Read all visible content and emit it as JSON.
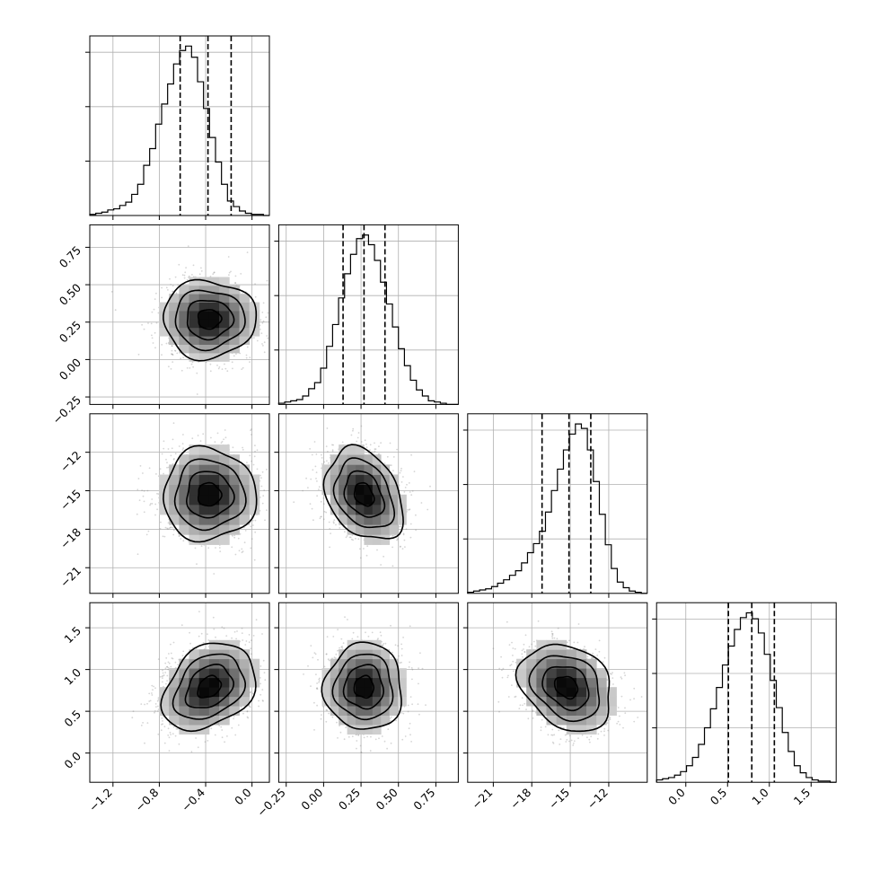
{
  "chart_data": {
    "type": "corner",
    "n_params": 4,
    "params": [
      {
        "range": [
          -1.4,
          0.15
        ],
        "ticks": [
          -1.2,
          -0.8,
          -0.4,
          0.0
        ],
        "tick_labels": [
          "−1.2",
          "−0.8",
          "−0.4",
          "0.0"
        ],
        "mean": -0.37,
        "sd": 0.2,
        "quantiles": [
          -0.62,
          -0.38,
          -0.18
        ]
      },
      {
        "range": [
          -0.3,
          0.9
        ],
        "ticks": [
          -0.25,
          0.0,
          0.25,
          0.5,
          0.75
        ],
        "tick_labels": [
          "−0.25",
          "0.00",
          "0.25",
          "0.50",
          "0.75"
        ],
        "mean": 0.27,
        "sd": 0.13,
        "quantiles": [
          0.13,
          0.27,
          0.41
        ]
      },
      {
        "range": [
          -23.0,
          -9.0
        ],
        "ticks": [
          -21,
          -18,
          -15,
          -12
        ],
        "tick_labels": [
          "−21",
          "−18",
          "−15",
          "−12"
        ],
        "mean": -15.3,
        "sd": 1.8,
        "quantiles": [
          -17.2,
          -15.1,
          -13.4
        ]
      },
      {
        "range": [
          -0.35,
          1.8
        ],
        "ticks": [
          0.0,
          0.5,
          1.0,
          1.5
        ],
        "tick_labels": [
          "0.0",
          "0.5",
          "1.0",
          "1.5"
        ],
        "mean": 0.79,
        "sd": 0.26,
        "quantiles": [
          0.51,
          0.79,
          1.06
        ]
      }
    ],
    "correlations": [
      [
        1,
        0,
        0,
        0.3
      ],
      [
        0,
        1,
        -0.3,
        0
      ],
      [
        0,
        -0.3,
        1,
        -0.25
      ],
      [
        0.3,
        0,
        -0.25,
        1
      ]
    ],
    "histograms": [
      {
        "range": [
          -1.4,
          0.15
        ],
        "bins": 30,
        "counts": [
          1,
          2,
          3,
          5,
          6,
          9,
          12,
          19,
          28,
          45,
          60,
          82,
          100,
          118,
          136,
          148,
          152,
          142,
          120,
          96,
          70,
          48,
          28,
          13,
          8,
          4,
          2,
          1,
          1,
          0
        ]
      },
      {
        "range": [
          -0.3,
          0.9
        ],
        "bins": 30,
        "counts": [
          1,
          2,
          3,
          4,
          7,
          13,
          18,
          30,
          48,
          66,
          88,
          108,
          124,
          137,
          140,
          132,
          119,
          101,
          83,
          64,
          46,
          32,
          20,
          12,
          7,
          3,
          2,
          1,
          0,
          0
        ]
      },
      {
        "range": [
          -23.0,
          -9.0
        ],
        "bins": 30,
        "counts": [
          1,
          2,
          3,
          4,
          6,
          9,
          12,
          16,
          20,
          27,
          36,
          44,
          55,
          72,
          91,
          110,
          127,
          141,
          150,
          146,
          127,
          99,
          70,
          43,
          22,
          10,
          5,
          2,
          1,
          0
        ]
      },
      {
        "range": [
          -0.35,
          1.8
        ],
        "bins": 30,
        "counts": [
          2,
          3,
          4,
          6,
          9,
          14,
          21,
          32,
          46,
          62,
          80,
          99,
          115,
          129,
          139,
          143,
          138,
          126,
          108,
          86,
          63,
          42,
          26,
          14,
          8,
          4,
          2,
          1,
          1,
          0
        ]
      }
    ],
    "contour_levels": [
      0.5,
      1.0,
      1.5,
      2.0
    ],
    "scatter_points_per_panel": 1400,
    "quantile_line_style": "dashed",
    "grid": true
  }
}
